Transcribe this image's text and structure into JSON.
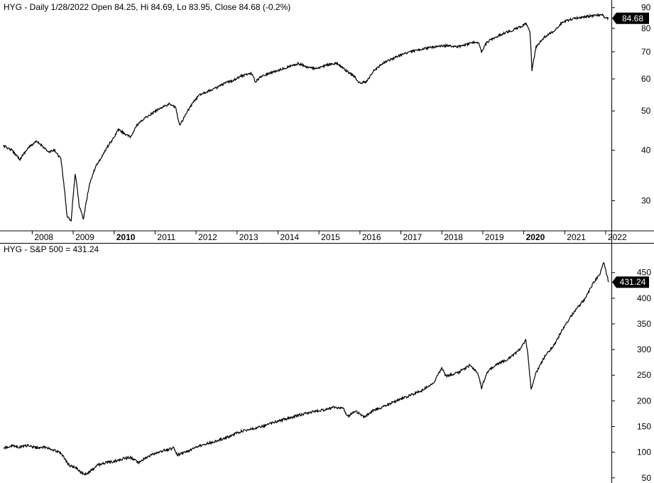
{
  "chart_data": [
    {
      "type": "line",
      "title": "HYG - Daily 1/28/2022 Open 84.25, Hi 84.69, Lo 83.95, Close 84.68 (-0.2%)",
      "series": [
        {
          "name": "HYG",
          "color": "#000000"
        }
      ],
      "x_labels": [
        "2008",
        "2009",
        "2010",
        "2011",
        "2012",
        "2013",
        "2014",
        "2015",
        "2016",
        "2017",
        "2018",
        "2019",
        "2020",
        "2021",
        "2022"
      ],
      "x_labels_bold": [
        "2010",
        "2020"
      ],
      "y_scale": "log",
      "ylim": [
        26,
        91
      ],
      "y_ticks": [
        30,
        40,
        50,
        60,
        70,
        80,
        90
      ],
      "last_value_tag": "84.68",
      "last_value": 84.68,
      "points": [
        [
          2007.3,
          41
        ],
        [
          2007.5,
          40
        ],
        [
          2007.7,
          38
        ],
        [
          2007.9,
          40.5
        ],
        [
          2008.1,
          42
        ],
        [
          2008.25,
          41
        ],
        [
          2008.4,
          39.5
        ],
        [
          2008.55,
          40
        ],
        [
          2008.7,
          38
        ],
        [
          2008.85,
          27.5
        ],
        [
          2008.95,
          26.8
        ],
        [
          2009.05,
          35
        ],
        [
          2009.15,
          29
        ],
        [
          2009.25,
          27
        ],
        [
          2009.4,
          33
        ],
        [
          2009.55,
          36.5
        ],
        [
          2009.7,
          38.5
        ],
        [
          2009.85,
          41
        ],
        [
          2010.0,
          43
        ],
        [
          2010.1,
          45
        ],
        [
          2010.25,
          44
        ],
        [
          2010.4,
          43
        ],
        [
          2010.55,
          46
        ],
        [
          2010.75,
          48
        ],
        [
          2010.95,
          49.5
        ],
        [
          2011.15,
          51
        ],
        [
          2011.35,
          52
        ],
        [
          2011.5,
          51
        ],
        [
          2011.6,
          46
        ],
        [
          2011.75,
          49
        ],
        [
          2011.9,
          52
        ],
        [
          2012.1,
          55
        ],
        [
          2012.3,
          56
        ],
        [
          2012.5,
          57
        ],
        [
          2012.7,
          58.5
        ],
        [
          2012.9,
          59.5
        ],
        [
          2013.1,
          61
        ],
        [
          2013.35,
          62
        ],
        [
          2013.45,
          59
        ],
        [
          2013.6,
          61
        ],
        [
          2013.9,
          62.5
        ],
        [
          2014.2,
          64
        ],
        [
          2014.5,
          65.5
        ],
        [
          2014.75,
          64
        ],
        [
          2014.95,
          63.5
        ],
        [
          2015.2,
          65
        ],
        [
          2015.45,
          65.5
        ],
        [
          2015.65,
          63
        ],
        [
          2015.85,
          61
        ],
        [
          2016.0,
          58.5
        ],
        [
          2016.15,
          59
        ],
        [
          2016.35,
          63
        ],
        [
          2016.6,
          66
        ],
        [
          2016.9,
          68
        ],
        [
          2017.2,
          70
        ],
        [
          2017.5,
          71
        ],
        [
          2017.8,
          72
        ],
        [
          2018.1,
          72.5
        ],
        [
          2018.4,
          72
        ],
        [
          2018.7,
          73.5
        ],
        [
          2018.9,
          74
        ],
        [
          2018.97,
          70
        ],
        [
          2019.1,
          74
        ],
        [
          2019.4,
          77
        ],
        [
          2019.7,
          79
        ],
        [
          2019.9,
          80.5
        ],
        [
          2020.05,
          82
        ],
        [
          2020.15,
          79
        ],
        [
          2020.2,
          63
        ],
        [
          2020.3,
          72
        ],
        [
          2020.5,
          76
        ],
        [
          2020.75,
          79
        ],
        [
          2020.95,
          83
        ],
        [
          2021.2,
          84.5
        ],
        [
          2021.5,
          85.5
        ],
        [
          2021.75,
          86
        ],
        [
          2021.9,
          86.5
        ],
        [
          2022.0,
          85
        ],
        [
          2022.07,
          84.68
        ]
      ]
    },
    {
      "type": "line",
      "title": "HYG - S&P 500 = 431.24",
      "series": [
        {
          "name": "HYG - S&P 500",
          "color": "#000000"
        }
      ],
      "y_scale": "linear",
      "ylim": [
        40,
        480
      ],
      "y_ticks": [
        50,
        100,
        150,
        200,
        250,
        300,
        350,
        400,
        450
      ],
      "last_value_tag": "431.24",
      "last_value": 431.24,
      "points": [
        [
          2007.3,
          108
        ],
        [
          2007.5,
          112
        ],
        [
          2007.7,
          110
        ],
        [
          2007.9,
          113
        ],
        [
          2008.1,
          108
        ],
        [
          2008.3,
          110
        ],
        [
          2008.5,
          105
        ],
        [
          2008.7,
          98
        ],
        [
          2008.9,
          75
        ],
        [
          2009.05,
          70
        ],
        [
          2009.2,
          60
        ],
        [
          2009.3,
          57
        ],
        [
          2009.45,
          65
        ],
        [
          2009.6,
          75
        ],
        [
          2009.8,
          80
        ],
        [
          2010.0,
          82
        ],
        [
          2010.2,
          87
        ],
        [
          2010.4,
          90
        ],
        [
          2010.6,
          80
        ],
        [
          2010.8,
          90
        ],
        [
          2011.0,
          98
        ],
        [
          2011.2,
          103
        ],
        [
          2011.45,
          108
        ],
        [
          2011.55,
          95
        ],
        [
          2011.75,
          100
        ],
        [
          2011.95,
          108
        ],
        [
          2012.2,
          115
        ],
        [
          2012.5,
          122
        ],
        [
          2012.8,
          130
        ],
        [
          2013.0,
          138
        ],
        [
          2013.3,
          145
        ],
        [
          2013.6,
          150
        ],
        [
          2013.9,
          158
        ],
        [
          2014.2,
          165
        ],
        [
          2014.5,
          172
        ],
        [
          2014.8,
          178
        ],
        [
          2015.1,
          182
        ],
        [
          2015.4,
          188
        ],
        [
          2015.6,
          184
        ],
        [
          2015.7,
          170
        ],
        [
          2015.9,
          180
        ],
        [
          2016.1,
          168
        ],
        [
          2016.3,
          180
        ],
        [
          2016.6,
          190
        ],
        [
          2016.9,
          200
        ],
        [
          2017.2,
          210
        ],
        [
          2017.5,
          220
        ],
        [
          2017.8,
          235
        ],
        [
          2018.0,
          265
        ],
        [
          2018.1,
          248
        ],
        [
          2018.4,
          255
        ],
        [
          2018.7,
          270
        ],
        [
          2018.9,
          250
        ],
        [
          2018.97,
          225
        ],
        [
          2019.1,
          255
        ],
        [
          2019.3,
          270
        ],
        [
          2019.6,
          280
        ],
        [
          2019.9,
          300
        ],
        [
          2020.05,
          320
        ],
        [
          2020.1,
          290
        ],
        [
          2020.18,
          222
        ],
        [
          2020.3,
          255
        ],
        [
          2020.5,
          285
        ],
        [
          2020.75,
          310
        ],
        [
          2020.95,
          340
        ],
        [
          2021.2,
          370
        ],
        [
          2021.5,
          400
        ],
        [
          2021.7,
          430
        ],
        [
          2021.85,
          445
        ],
        [
          2021.95,
          470
        ],
        [
          2022.0,
          455
        ],
        [
          2022.07,
          431.24
        ]
      ]
    }
  ]
}
